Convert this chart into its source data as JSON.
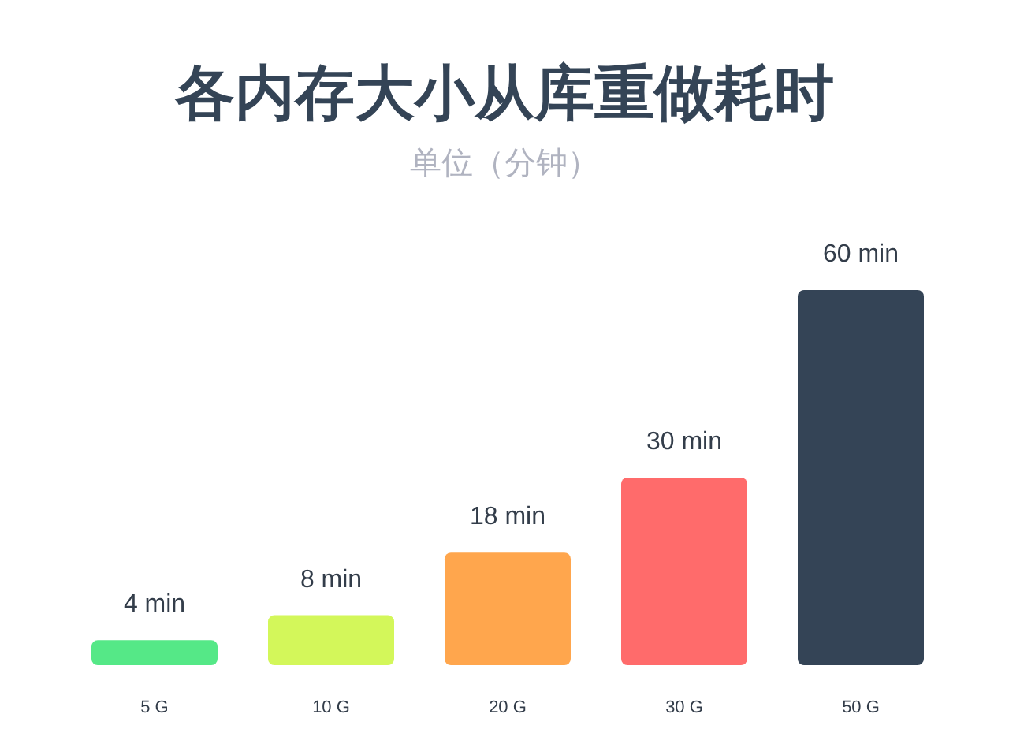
{
  "chart_data": {
    "type": "bar",
    "title": "各内存大小从库重做耗时",
    "subtitle": "单位（分钟）",
    "categories": [
      "5 G",
      "10 G",
      "20 G",
      "30 G",
      "50 G"
    ],
    "values": [
      4,
      8,
      18,
      30,
      60
    ],
    "colors": [
      "#55e887",
      "#d3f75a",
      "#ffa64d",
      "#ff6b6b",
      "#344456"
    ],
    "value_labels": [
      "4 min",
      "8 min",
      "18 min",
      "30 min",
      "60 min"
    ]
  }
}
